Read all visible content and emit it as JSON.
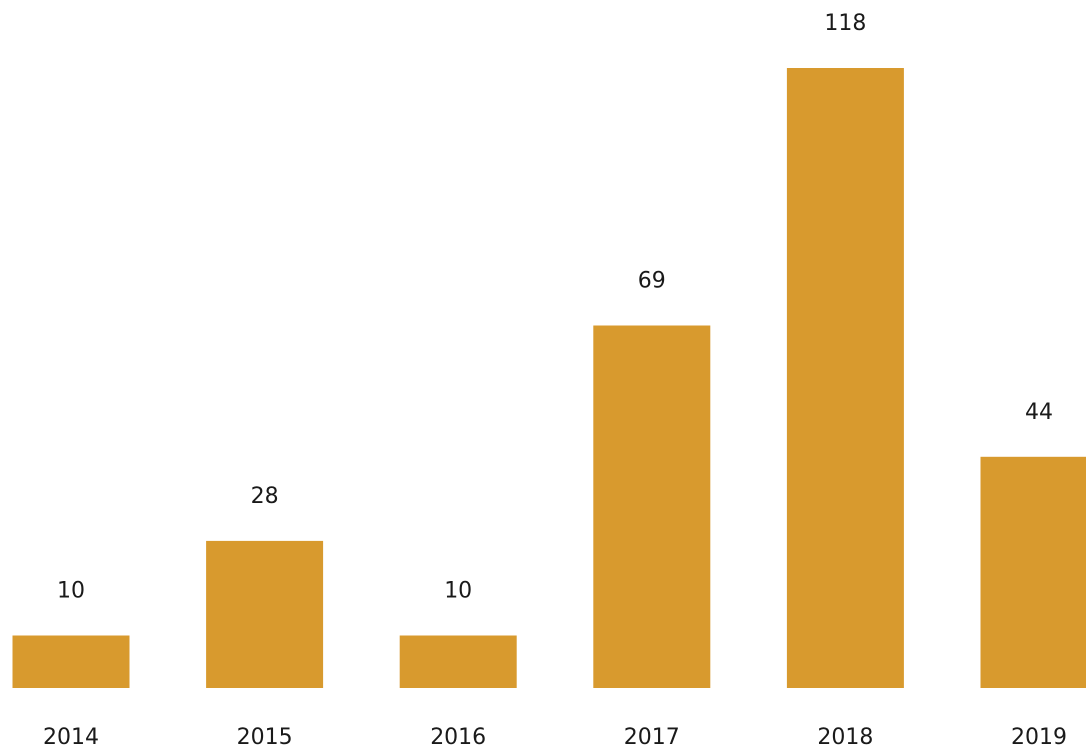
{
  "chart_data": {
    "type": "bar",
    "categories": [
      "2014",
      "2015",
      "2016",
      "2017",
      "2018",
      "2019"
    ],
    "values": [
      10,
      28,
      10,
      69,
      118,
      44
    ],
    "data_labels": [
      "10",
      "28",
      "10",
      "69",
      "118",
      "44"
    ],
    "title": "",
    "xlabel": "",
    "ylabel": "",
    "ylim": [
      0,
      118
    ],
    "grid": false,
    "legend": "none",
    "bar_color": "#D89A2E"
  }
}
